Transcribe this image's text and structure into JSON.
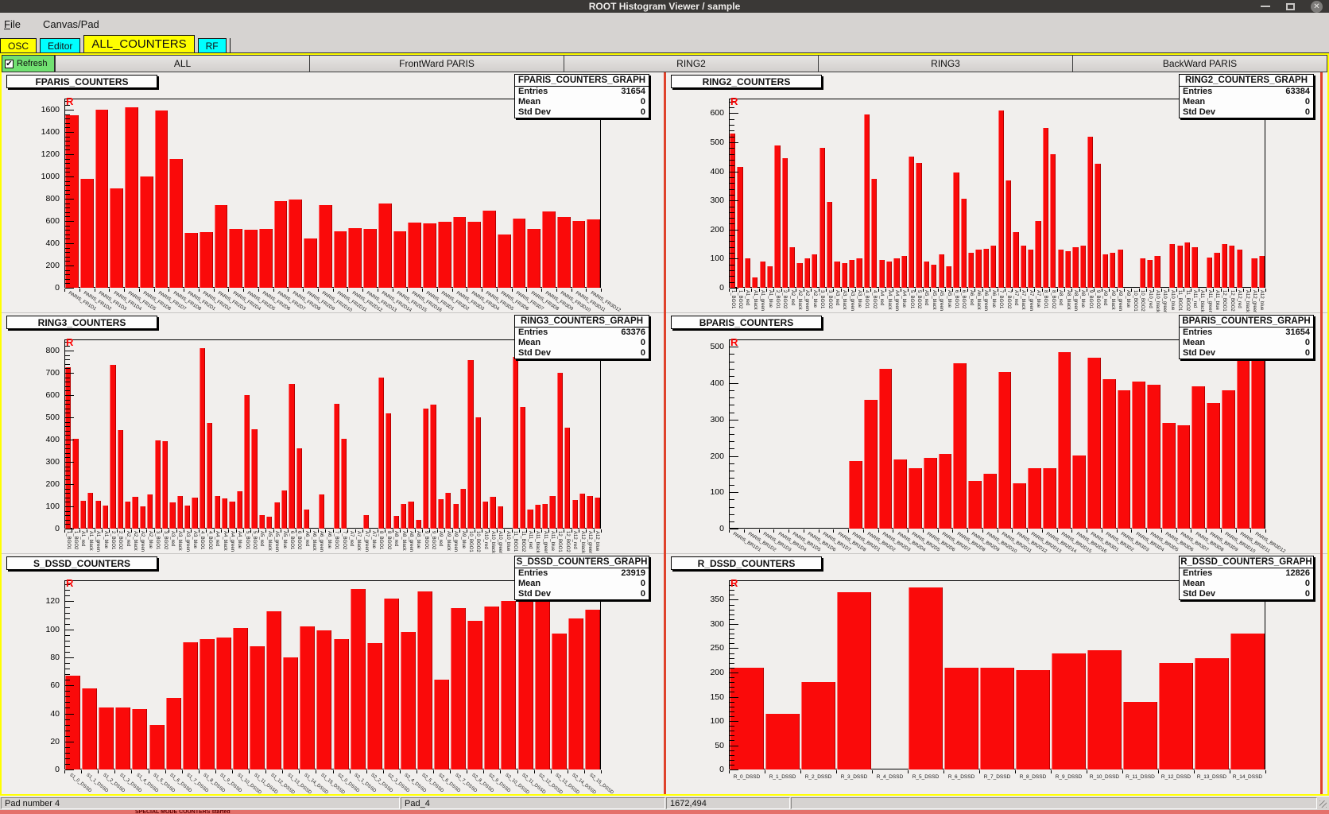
{
  "window": {
    "title": "ROOT Histogram Viewer / sample",
    "close_glyph": "✕"
  },
  "menu": {
    "file_initial": "F",
    "file_rest": "ile",
    "canvas_pad": "Canvas/Pad"
  },
  "tabs": [
    {
      "label": "OSC",
      "color": "#ffff00",
      "selected": false
    },
    {
      "label": "Editor",
      "color": "#00ffff",
      "selected": false
    },
    {
      "label": "ALL_COUNTERS",
      "color": "#ffff00",
      "selected": true
    },
    {
      "label": "RF",
      "color": "#00ffff",
      "selected": false
    }
  ],
  "refresh": {
    "label": "Refresh",
    "checked": true,
    "check_glyph": "✔",
    "color": "#71e071"
  },
  "section_tabs": [
    "ALL",
    "FrontWard PARIS",
    "RING2",
    "RING3",
    "BackWard PARIS"
  ],
  "statusbar": {
    "cells": [
      "Pad number 4",
      "Pad_4",
      "1672,494",
      ""
    ]
  },
  "bottom_strip": {
    "partial_text": "SPECIAL MODE            COUNTERS            started"
  },
  "colors": {
    "bar_red": "#fa0a0a",
    "pad_divider": "#df432c",
    "frame_yellow": "#ffff00"
  },
  "chart_data": [
    {
      "type": "bar",
      "title": "FPARIS_COUNTERS",
      "stats": {
        "name": "FPARIS_COUNTERS_GRAPH",
        "entries": "31654",
        "mean": "0",
        "std_dev": "0"
      },
      "ylim": 1700,
      "yticks": [
        0,
        200,
        400,
        600,
        800,
        1000,
        1200,
        1400,
        1600
      ],
      "label_rotation": 32,
      "categories": [
        "PARIS_FR1D1",
        "PARIS_FR1D2",
        "PARIS_FR1D3",
        "PARIS_FR1D4",
        "PARIS_FR1D5",
        "PARIS_FR1D6",
        "PARIS_FR1D7",
        "PARIS_FR1D8",
        "PARIS_FR2D1",
        "PARIS_FR2D2",
        "PARIS_FR2D3",
        "PARIS_FR2D4",
        "PARIS_FR2D5",
        "PARIS_FR2D6",
        "PARIS_FR2D7",
        "PARIS_FR2D8",
        "PARIS_FR2D9",
        "PARIS_FR2D10",
        "PARIS_FR2D11",
        "PARIS_FR2D12",
        "PARIS_FR2D13",
        "PARIS_FR2D14",
        "PARIS_FR2D15",
        "PARIS_FR2D16",
        "PARIS_FR3D1",
        "PARIS_FR3D2",
        "PARIS_FR3D3",
        "PARIS_FR3D4",
        "PARIS_FR3D5",
        "PARIS_FR3D6",
        "PARIS_FR3D7",
        "PARIS_FR3D8",
        "PARIS_FR3D9",
        "PARIS_FR3D10",
        "PARIS_FR3D11",
        "PARIS_FR3D12"
      ],
      "values": [
        1550,
        975,
        1600,
        890,
        1620,
        1000,
        1590,
        1160,
        490,
        500,
        740,
        525,
        520,
        525,
        780,
        790,
        440,
        745,
        505,
        535,
        525,
        755,
        510,
        585,
        575,
        590,
        635,
        590,
        690,
        475,
        620,
        525,
        685,
        635,
        600,
        615
      ]
    },
    {
      "type": "bar",
      "title": "RING2_COUNTERS",
      "stats": {
        "name": "RING2_COUNTERS_GRAPH",
        "entries": "63384",
        "mean": "0",
        "std_dev": "0"
      },
      "ylim": 650,
      "yticks": [
        0,
        100,
        200,
        300,
        400,
        500,
        600
      ],
      "label_rotation": 90,
      "categories": [
        "1_BGO1",
        "1_BGO2",
        "A1_red",
        "A1_black",
        "A1_green",
        "A1_blue",
        "2_BGO1",
        "2_BGO2",
        "A2_red",
        "A2_black",
        "A2_green",
        "A2_blue",
        "3_BGO1",
        "3_BGO2",
        "A3_red",
        "A3_black",
        "A3_green",
        "A3_blue",
        "4_BGO1",
        "4_BGO2",
        "A4_red",
        "A4_black",
        "A4_green",
        "A4_blue",
        "5_BGO1",
        "5_BGO2",
        "A5_red",
        "A5_black",
        "A5_green",
        "A5_blue",
        "6_BGO1",
        "6_BGO2",
        "A6_red",
        "A6_black",
        "A6_green",
        "A6_blue",
        "7_BGO1",
        "7_BGO2",
        "A7_red",
        "A7_black",
        "A7_green",
        "A7_blue",
        "8_BGO1",
        "8_BGO2",
        "A8_red",
        "A8_black",
        "A8_green",
        "A8_blue",
        "9_BGO1",
        "9_BGO2",
        "A9_red",
        "A9_black",
        "A9_green",
        "A9_blue",
        "10_BGO1",
        "10_BGO2",
        "A10_red",
        "A10_black",
        "A10_green",
        "A10_blue",
        "11_BGO1",
        "11_BGO2",
        "A11_red",
        "A11_black",
        "A11_green",
        "A11_blue",
        "12_BGO1",
        "12_BGO2",
        "A12_red",
        "A12_black",
        "A12_green",
        "A12_blue"
      ],
      "values": [
        530,
        415,
        100,
        35,
        90,
        75,
        490,
        445,
        140,
        85,
        100,
        115,
        480,
        295,
        90,
        85,
        95,
        100,
        595,
        375,
        95,
        90,
        100,
        110,
        450,
        430,
        90,
        80,
        115,
        75,
        395,
        305,
        120,
        130,
        135,
        145,
        610,
        370,
        190,
        145,
        130,
        230,
        550,
        460,
        130,
        125,
        140,
        145,
        520,
        425,
        115,
        120,
        130,
        0,
        0,
        100,
        95,
        110,
        0,
        150,
        145,
        155,
        140,
        0,
        105,
        120,
        150,
        145,
        130,
        0,
        100,
        110
      ]
    },
    {
      "type": "bar",
      "title": "RING3_COUNTERS",
      "stats": {
        "name": "RING3_COUNTERS_GRAPH",
        "entries": "63376",
        "mean": "0",
        "std_dev": "0"
      },
      "ylim": 850,
      "yticks": [
        0,
        100,
        200,
        300,
        400,
        500,
        600,
        700,
        800
      ],
      "label_rotation": 90,
      "categories": [
        "1_BGO1",
        "1_BGO2",
        "A1_red",
        "A1_black",
        "A1_green",
        "A1_blue",
        "2_BGO1",
        "2_BGO2",
        "A2_red",
        "A2_black",
        "A2_green",
        "A2_blue",
        "3_BGO1",
        "3_BGO2",
        "A3_red",
        "A3_black",
        "A3_green",
        "A3_blue",
        "4_BGO1",
        "4_BGO2",
        "A4_red",
        "A4_black",
        "A4_green",
        "A4_blue",
        "5_BGO1",
        "5_BGO2",
        "A5_red",
        "A5_black",
        "A5_green",
        "A5_blue",
        "6_BGO1",
        "6_BGO2",
        "A6_red",
        "A6_black",
        "A6_green",
        "A6_blue",
        "7_BGO1",
        "7_BGO2",
        "A7_red",
        "A7_black",
        "A7_green",
        "A7_blue",
        "8_BGO1",
        "8_BGO2",
        "A8_red",
        "A8_black",
        "A8_green",
        "A8_blue",
        "9_BGO1",
        "9_BGO2",
        "A9_red",
        "A9_black",
        "A9_green",
        "A9_blue",
        "10_BGO1",
        "10_BGO2",
        "A10_red",
        "A10_black",
        "A10_green",
        "A10_blue",
        "11_BGO1",
        "11_BGO2",
        "A11_red",
        "A11_black",
        "A11_green",
        "A11_blue",
        "12_BGO1",
        "12_BGO2",
        "A12_red",
        "A12_black",
        "A12_green",
        "A12_blue"
      ],
      "values": [
        725,
        405,
        125,
        160,
        125,
        105,
        735,
        443,
        122,
        143,
        100,
        155,
        395,
        392,
        118,
        145,
        103,
        140,
        810,
        475,
        145,
        137,
        122,
        168,
        600,
        445,
        60,
        55,
        118,
        170,
        650,
        360,
        85,
        0,
        153,
        0,
        560,
        405,
        0,
        0,
        60,
        0,
        680,
        518,
        58,
        110,
        122,
        40,
        538,
        558,
        132,
        160,
        110,
        178,
        758,
        500,
        122,
        142,
        100,
        0,
        770,
        548,
        85,
        108,
        112,
        145,
        700,
        455,
        128,
        157,
        145,
        138
      ]
    },
    {
      "type": "bar",
      "title": "BPARIS_COUNTERS",
      "stats": {
        "name": "BPARIS_COUNTERS_GRAPH",
        "entries": "31654",
        "mean": "0",
        "std_dev": "0"
      },
      "ylim": 520,
      "yticks": [
        0,
        100,
        200,
        300,
        400,
        500
      ],
      "label_rotation": 32,
      "categories": [
        "PARIS_BR1D1",
        "PARIS_BR1D2",
        "PARIS_BR1D3",
        "PARIS_BR1D4",
        "PARIS_BR1D5",
        "PARIS_BR1D6",
        "PARIS_BR1D7",
        "PARIS_BR1D8",
        "PARIS_BR2D1",
        "PARIS_BR2D2",
        "PARIS_BR2D3",
        "PARIS_BR2D4",
        "PARIS_BR2D5",
        "PARIS_BR2D6",
        "PARIS_BR2D7",
        "PARIS_BR2D8",
        "PARIS_BR2D9",
        "PARIS_BR2D10",
        "PARIS_BR2D11",
        "PARIS_BR2D12",
        "PARIS_BR2D13",
        "PARIS_BR2D14",
        "PARIS_BR2D15",
        "PARIS_BR2D16",
        "PARIS_BR3D1",
        "PARIS_BR3D2",
        "PARIS_BR3D3",
        "PARIS_BR3D4",
        "PARIS_BR3D5",
        "PARIS_BR3D6",
        "PARIS_BR3D7",
        "PARIS_BR3D8",
        "PARIS_BR3D9",
        "PARIS_BR3D10",
        "PARIS_BR3D11",
        "PARIS_BR3D12"
      ],
      "values": [
        0,
        0,
        0,
        0,
        0,
        0,
        0,
        0,
        185,
        355,
        440,
        190,
        165,
        195,
        205,
        455,
        130,
        150,
        430,
        125,
        165,
        165,
        485,
        200,
        470,
        410,
        380,
        405,
        395,
        290,
        285,
        390,
        345,
        380,
        465,
        470
      ]
    },
    {
      "type": "bar",
      "title": "S_DSSD_COUNTERS",
      "stats": {
        "name": "S_DSSD_COUNTERS_GRAPH",
        "entries": "23919",
        "mean": "0",
        "std_dev": "0"
      },
      "ylim": 135,
      "yticks": [
        0,
        20,
        40,
        60,
        80,
        100,
        120
      ],
      "label_rotation": 40,
      "categories": [
        "S1_0_DSSD",
        "S1_1_DSSD",
        "S1_2_DSSD",
        "S1_3_DSSD",
        "S1_4_DSSD",
        "S1_5_DSSD",
        "S1_6_DSSD",
        "S1_7_DSSD",
        "S1_8_DSSD",
        "S1_9_DSSD",
        "S1_10_DSSD",
        "S1_11_DSSD",
        "S1_12_DSSD",
        "S1_13_DSSD",
        "S1_14_DSSD",
        "S1_15_DSSD",
        "S2_0_DSSD",
        "S2_1_DSSD",
        "S2_2_DSSD",
        "S2_3_DSSD",
        "S2_4_DSSD",
        "S2_5_DSSD",
        "S2_6_DSSD",
        "S2_7_DSSD",
        "S2_8_DSSD",
        "S2_9_DSSD",
        "S2_10_DSSD",
        "S2_11_DSSD",
        "S2_12_DSSD",
        "S2_13_DSSD",
        "S2_14_DSSD",
        "S2_15_DSSD"
      ],
      "values": [
        67,
        58,
        44,
        44,
        43,
        32,
        51,
        91,
        93,
        94,
        101,
        88,
        113,
        80,
        102,
        99,
        93,
        129,
        90,
        122,
        98,
        127,
        64,
        115,
        106,
        116,
        120,
        129,
        125,
        97,
        108,
        114
      ]
    },
    {
      "type": "bar",
      "title": "R_DSSD_COUNTERS",
      "stats": {
        "name": "R_DSSD_COUNTERS_GRAPH",
        "entries": "12826",
        "mean": "0",
        "std_dev": "0"
      },
      "ylim": 390,
      "yticks": [
        0,
        50,
        100,
        150,
        200,
        250,
        300,
        350
      ],
      "label_rotation": 0,
      "categories": [
        "R_0_DSSD",
        "R_1_DSSD",
        "R_2_DSSD",
        "R_3_DSSD",
        "R_4_DSSD",
        "R_5_DSSD",
        "R_6_DSSD",
        "R_7_DSSD",
        "R_8_DSSD",
        "R_9_DSSD",
        "R_10_DSSD",
        "R_11_DSSD",
        "R_12_DSSD",
        "R_13_DSSD",
        "R_14_DSSD"
      ],
      "values": [
        210,
        115,
        180,
        365,
        0,
        375,
        210,
        210,
        205,
        240,
        245,
        140,
        220,
        230,
        280
      ]
    }
  ]
}
